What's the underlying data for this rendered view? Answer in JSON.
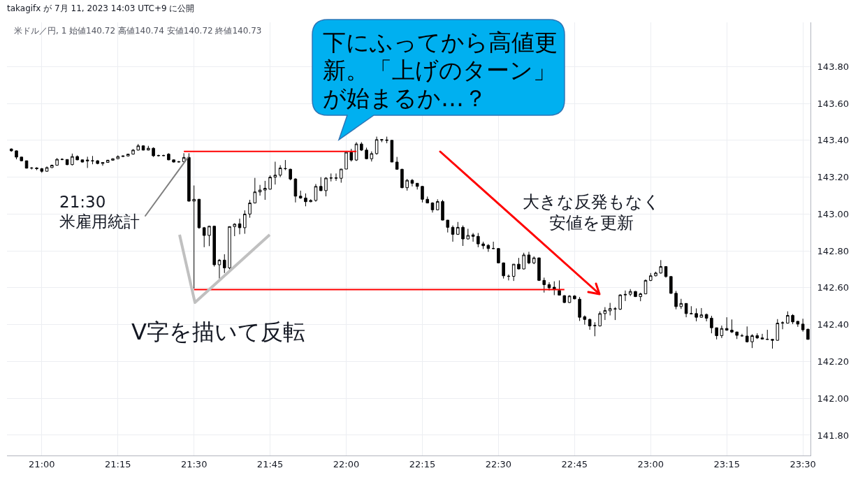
{
  "chart_data": {
    "type": "candlestick",
    "annotations": [
      "takagifx が 7月 11, 2023 14:03 UTC+9 に公開",
      "米ドル／円, 1 始値140.72 高値140.74 安値140.72 終値140.73",
      "下にふってから高値更新。「上げのターン」が始まるか…？",
      {
        "text": "21:30\n米雇用統計",
        "y": 143.307
      },
      "V字を描いて反転",
      "大きな反発もなく安値を更新"
    ],
    "categories": [
      null,
      null,
      null,
      null,
      null,
      null,
      "21:00",
      null,
      null,
      null,
      null,
      null,
      null,
      null,
      null,
      null,
      null,
      null,
      null,
      null,
      null,
      "21:15",
      null,
      null,
      null,
      null,
      null,
      null,
      null,
      null,
      null,
      null,
      null,
      null,
      null,
      null,
      "21:30",
      null,
      null,
      null,
      null,
      null,
      null,
      null,
      null,
      null,
      null,
      null,
      null,
      null,
      null,
      "21:45",
      null,
      null,
      null,
      null,
      null,
      null,
      null,
      null,
      null,
      null,
      null,
      null,
      null,
      null,
      "22:00",
      null,
      null,
      null,
      null,
      null,
      null,
      null,
      null,
      null,
      null,
      null,
      null,
      null,
      null,
      "22:15",
      null,
      null,
      null,
      null,
      null,
      null,
      null,
      null,
      null,
      null,
      null,
      null,
      null,
      null,
      "22:30",
      null,
      null,
      null,
      null,
      null,
      null,
      null,
      null,
      null,
      null,
      null,
      null,
      null,
      null,
      "22:45",
      null,
      null,
      null,
      null,
      null,
      null,
      null,
      null,
      null,
      null,
      null,
      null,
      null,
      null,
      "23:00",
      null,
      null,
      null,
      null,
      null,
      null,
      null,
      null,
      null,
      null,
      null,
      null,
      null,
      null,
      "23:15",
      null,
      null,
      null,
      null,
      null,
      null,
      null,
      null,
      null,
      null,
      null,
      null,
      null,
      null,
      "23:30",
      null
    ],
    "ohlc": [
      [
        143.353,
        143.356,
        143.338,
        143.343
      ],
      [
        143.343,
        143.345,
        143.297,
        143.309
      ],
      [
        143.309,
        143.31,
        143.287,
        143.289
      ],
      [
        143.289,
        143.29,
        143.247,
        143.249
      ],
      [
        143.249,
        143.255,
        143.242,
        143.25
      ],
      [
        143.25,
        143.254,
        143.238,
        143.246
      ],
      [
        143.246,
        143.25,
        143.224,
        143.232
      ],
      [
        143.232,
        143.258,
        143.23,
        143.252
      ],
      [
        143.252,
        143.268,
        143.25,
        143.265
      ],
      [
        143.265,
        143.303,
        143.263,
        143.297
      ],
      [
        143.297,
        143.302,
        143.292,
        143.296
      ],
      [
        143.296,
        143.297,
        143.265,
        143.268
      ],
      [
        143.268,
        143.328,
        143.264,
        143.312
      ],
      [
        143.312,
        143.318,
        143.292,
        143.294
      ],
      [
        143.294,
        143.296,
        143.28,
        143.282
      ],
      [
        143.288,
        143.311,
        143.25,
        143.293
      ],
      [
        143.288,
        143.315,
        143.27,
        143.289
      ],
      [
        143.289,
        143.292,
        143.27,
        143.274
      ],
      [
        143.274,
        143.281,
        143.262,
        143.28
      ],
      [
        143.28,
        143.294,
        143.278,
        143.292
      ],
      [
        143.292,
        143.302,
        143.29,
        143.3
      ],
      [
        143.3,
        143.318,
        143.298,
        143.312
      ],
      [
        143.312,
        143.318,
        143.31,
        143.315
      ],
      [
        143.315,
        143.327,
        143.313,
        143.325
      ],
      [
        143.325,
        143.352,
        143.323,
        143.347
      ],
      [
        143.347,
        143.38,
        143.345,
        143.37
      ],
      [
        143.37,
        143.373,
        143.345,
        143.347
      ],
      [
        143.347,
        143.37,
        143.345,
        143.357
      ],
      [
        143.357,
        143.362,
        143.31,
        143.316
      ],
      [
        143.316,
        143.322,
        143.312,
        143.318
      ],
      [
        143.318,
        143.322,
        143.314,
        143.317
      ],
      [
        143.325,
        143.33,
        143.292,
        143.294
      ],
      [
        143.294,
        143.296,
        143.28,
        143.282
      ],
      [
        143.282,
        143.288,
        143.28,
        143.284
      ],
      [
        143.284,
        143.33,
        143.282,
        143.307
      ],
      [
        143.307,
        143.33,
        143.068,
        143.07
      ],
      [
        143.07,
        143.155,
        142.596,
        143.08
      ],
      [
        143.08,
        143.082,
        142.92,
        142.926
      ],
      [
        142.926,
        142.93,
        142.82,
        142.884
      ],
      [
        142.884,
        142.936,
        142.826,
        142.934
      ],
      [
        142.934,
        142.936,
        142.715,
        142.725
      ],
      [
        142.725,
        142.756,
        142.65,
        142.75
      ],
      [
        142.75,
        142.782,
        142.68,
        142.708
      ],
      [
        142.708,
        142.933,
        142.7,
        142.932
      ],
      [
        142.932,
        142.95,
        142.88,
        142.945
      ],
      [
        142.947,
        142.975,
        142.89,
        142.926
      ],
      [
        142.926,
        143.02,
        142.893,
        143.0
      ],
      [
        143.0,
        143.077,
        142.98,
        143.06
      ],
      [
        143.06,
        143.196,
        143.058,
        143.12
      ],
      [
        143.12,
        143.158,
        143.1,
        143.13
      ],
      [
        143.13,
        143.18,
        143.077,
        143.14
      ],
      [
        143.135,
        143.21,
        143.133,
        143.2
      ],
      [
        143.2,
        143.284,
        143.16,
        143.211
      ],
      [
        143.211,
        143.265,
        143.2,
        143.25
      ],
      [
        143.247,
        143.293,
        143.238,
        143.246
      ],
      [
        143.243,
        143.246,
        143.183,
        143.19
      ],
      [
        143.19,
        143.195,
        143.063,
        143.097
      ],
      [
        143.097,
        143.127,
        143.083,
        143.087
      ],
      [
        143.087,
        143.112,
        143.042,
        143.067
      ],
      [
        143.067,
        143.08,
        143.064,
        143.074
      ],
      [
        143.074,
        143.163,
        143.067,
        143.15
      ],
      [
        143.15,
        143.2,
        143.125,
        143.127
      ],
      [
        143.127,
        143.2,
        143.096,
        143.195
      ],
      [
        143.195,
        143.22,
        143.177,
        143.196
      ],
      [
        143.196,
        143.22,
        143.18,
        143.195
      ],
      [
        143.194,
        143.244,
        143.17,
        143.244
      ],
      [
        143.244,
        143.335,
        143.244,
        143.335
      ],
      [
        143.335,
        143.354,
        143.285,
        143.293
      ],
      [
        143.293,
        143.39,
        143.288,
        143.38
      ],
      [
        143.38,
        143.39,
        143.342,
        143.347
      ],
      [
        143.347,
        143.36,
        143.297,
        143.3
      ],
      [
        143.3,
        143.34,
        143.285,
        143.328
      ],
      [
        143.328,
        143.42,
        143.322,
        143.404
      ],
      [
        143.404,
        143.406,
        143.39,
        143.402
      ],
      [
        143.402,
        143.42,
        143.384,
        143.4
      ],
      [
        143.4,
        143.4,
        143.282,
        143.282
      ],
      [
        143.282,
        143.31,
        143.24,
        143.243
      ],
      [
        143.243,
        143.245,
        143.14,
        143.143
      ],
      [
        143.143,
        143.19,
        143.127,
        143.183
      ],
      [
        143.183,
        143.19,
        143.15,
        143.167
      ],
      [
        143.167,
        143.168,
        143.133,
        143.15
      ],
      [
        143.15,
        143.152,
        143.063,
        143.08
      ],
      [
        143.08,
        143.095,
        143.058,
        143.06
      ],
      [
        143.06,
        143.064,
        143.008,
        143.023
      ],
      [
        143.023,
        143.08,
        143.02,
        143.068
      ],
      [
        143.068,
        143.077,
        142.966,
        142.967
      ],
      [
        142.967,
        142.968,
        142.9,
        142.928
      ],
      [
        142.928,
        142.938,
        142.85,
        142.89
      ],
      [
        142.89,
        142.957,
        142.887,
        142.928
      ],
      [
        142.928,
        142.938,
        142.827,
        142.865
      ],
      [
        142.865,
        142.92,
        142.862,
        142.884
      ],
      [
        142.887,
        142.897,
        142.85,
        142.879
      ],
      [
        142.879,
        142.897,
        142.82,
        142.838
      ],
      [
        142.838,
        142.85,
        142.81,
        142.828
      ],
      [
        142.83,
        142.837,
        142.795,
        142.813
      ],
      [
        142.813,
        142.85,
        142.81,
        142.813
      ],
      [
        142.813,
        142.815,
        142.733,
        142.735
      ],
      [
        142.735,
        142.737,
        142.65,
        142.665
      ],
      [
        142.663,
        142.672,
        142.64,
        142.662
      ],
      [
        142.662,
        142.728,
        142.637,
        142.728
      ],
      [
        142.728,
        142.762,
        142.7,
        142.702
      ],
      [
        142.702,
        142.79,
        142.7,
        142.778
      ],
      [
        142.778,
        142.795,
        142.728,
        142.735
      ],
      [
        142.735,
        142.77,
        142.728,
        142.762
      ],
      [
        142.762,
        142.764,
        142.637,
        142.64
      ],
      [
        142.64,
        142.655,
        142.574,
        142.617
      ],
      [
        142.617,
        142.63,
        142.585,
        142.6
      ],
      [
        142.603,
        142.635,
        142.56,
        142.59
      ],
      [
        142.585,
        142.64,
        142.558,
        142.56
      ],
      [
        142.557,
        142.56,
        142.517,
        142.52
      ],
      [
        142.52,
        142.56,
        142.517,
        142.555
      ],
      [
        142.555,
        142.56,
        142.537,
        142.54
      ],
      [
        142.538,
        142.55,
        142.42,
        142.44
      ],
      [
        142.443,
        142.45,
        142.4,
        142.428
      ],
      [
        142.428,
        142.433,
        142.372,
        142.393
      ],
      [
        142.394,
        142.413,
        142.337,
        142.395
      ],
      [
        142.393,
        142.472,
        142.39,
        142.46
      ],
      [
        142.46,
        142.495,
        142.425,
        142.477
      ],
      [
        142.475,
        142.518,
        142.45,
        142.487
      ],
      [
        142.486,
        142.495,
        142.425,
        142.485
      ],
      [
        142.484,
        142.565,
        142.48,
        142.561
      ],
      [
        142.561,
        142.585,
        142.528,
        142.564
      ],
      [
        142.565,
        142.593,
        142.555,
        142.58
      ],
      [
        142.58,
        142.582,
        142.55,
        142.552
      ],
      [
        142.552,
        142.573,
        142.527,
        142.567
      ],
      [
        142.567,
        142.645,
        142.565,
        142.64
      ],
      [
        142.64,
        142.68,
        142.636,
        142.665
      ],
      [
        142.665,
        142.687,
        142.662,
        142.68
      ],
      [
        142.68,
        142.75,
        142.677,
        142.715
      ],
      [
        142.715,
        142.717,
        142.655,
        142.661
      ],
      [
        142.661,
        142.661,
        142.567,
        142.57
      ],
      [
        142.57,
        142.583,
        142.483,
        142.498
      ],
      [
        142.498,
        142.54,
        142.485,
        142.515
      ],
      [
        142.515,
        142.516,
        142.44,
        142.46
      ],
      [
        142.46,
        142.5,
        142.457,
        142.459
      ],
      [
        142.46,
        142.488,
        142.418,
        142.44
      ],
      [
        142.44,
        142.49,
        142.438,
        142.453
      ],
      [
        142.455,
        142.46,
        142.418,
        142.435
      ],
      [
        142.435,
        142.448,
        142.353,
        142.383
      ],
      [
        142.383,
        142.384,
        142.32,
        142.34
      ],
      [
        142.34,
        142.395,
        142.327,
        142.379
      ],
      [
        142.379,
        142.44,
        142.367,
        142.37
      ],
      [
        142.37,
        142.428,
        142.355,
        142.36
      ],
      [
        142.36,
        142.362,
        142.322,
        142.342
      ],
      [
        142.34,
        142.35,
        142.335,
        142.339
      ],
      [
        142.338,
        142.39,
        142.303,
        142.307
      ],
      [
        142.307,
        142.348,
        142.273,
        142.34
      ],
      [
        142.34,
        142.353,
        142.322,
        142.328
      ],
      [
        142.328,
        142.35,
        142.32,
        142.322
      ],
      [
        142.321,
        142.372,
        142.318,
        142.32
      ],
      [
        142.32,
        142.322,
        142.27,
        142.315
      ],
      [
        142.315,
        142.43,
        142.313,
        142.408
      ],
      [
        142.408,
        142.418,
        142.375,
        142.41
      ],
      [
        142.408,
        142.472,
        142.406,
        142.45
      ],
      [
        142.45,
        142.457,
        142.403,
        142.415
      ],
      [
        142.418,
        142.42,
        142.388,
        142.403
      ],
      [
        142.403,
        142.432,
        142.362,
        142.372
      ],
      [
        142.375,
        142.378,
        142.32,
        142.32
      ]
    ],
    "series": [
      {
        "type": "line",
        "color": "#ff0000",
        "values": [
          null,
          null,
          null,
          null,
          null,
          null,
          null,
          null,
          null,
          null,
          null,
          null,
          null,
          null,
          null,
          null,
          null,
          null,
          null,
          null,
          null,
          null,
          null,
          null,
          null,
          null,
          null,
          null,
          null,
          null,
          null,
          null,
          null,
          null,
          143.34,
          143.34,
          143.34,
          143.34,
          143.34,
          143.34,
          143.34,
          143.34,
          143.34,
          143.34,
          143.34,
          143.34,
          143.34,
          143.34,
          143.34,
          143.34,
          143.34,
          143.34,
          143.34,
          143.34,
          143.34,
          143.34,
          143.34,
          143.34,
          143.34,
          143.34,
          143.34,
          143.34,
          143.34,
          143.34,
          143.34,
          143.34,
          143.34,
          143.34,
          143.34,
          null,
          null,
          null,
          null,
          null,
          null,
          null,
          null,
          null,
          null,
          null,
          null,
          null,
          null,
          null,
          null,
          null,
          null,
          null,
          null,
          null,
          null,
          null,
          null,
          null,
          null,
          null,
          null,
          null,
          null,
          null,
          null,
          null,
          null,
          null,
          null,
          null,
          null,
          null,
          null,
          null,
          null,
          null,
          null,
          null,
          null,
          null,
          null,
          null,
          null,
          null,
          null,
          null,
          null,
          null,
          null,
          null,
          null,
          null,
          null,
          null,
          null,
          null,
          null,
          null,
          null,
          null,
          null,
          null,
          null,
          null,
          null,
          null,
          null,
          null,
          null,
          null,
          null,
          null,
          null,
          null,
          null,
          null,
          null,
          null,
          null,
          null,
          null,
          null
        ]
      },
      {
        "type": "line",
        "color": "#ff0000",
        "values": [
          null,
          null,
          null,
          null,
          null,
          null,
          null,
          null,
          null,
          null,
          null,
          null,
          null,
          null,
          null,
          null,
          null,
          null,
          null,
          null,
          null,
          null,
          null,
          null,
          null,
          null,
          null,
          null,
          null,
          null,
          null,
          null,
          null,
          null,
          null,
          null,
          142.59,
          142.59,
          142.59,
          142.59,
          142.59,
          142.59,
          142.59,
          142.59,
          142.59,
          142.59,
          142.59,
          142.59,
          142.59,
          142.59,
          142.59,
          142.59,
          142.59,
          142.59,
          142.59,
          142.59,
          142.59,
          142.59,
          142.59,
          142.59,
          142.59,
          142.59,
          142.59,
          142.59,
          142.59,
          142.59,
          142.59,
          142.59,
          142.59,
          142.59,
          142.59,
          142.59,
          142.59,
          142.59,
          142.59,
          142.59,
          142.59,
          142.59,
          142.59,
          142.59,
          142.59,
          142.59,
          142.59,
          142.59,
          142.59,
          142.59,
          142.59,
          142.59,
          142.59,
          142.59,
          142.59,
          142.59,
          142.59,
          142.59,
          142.59,
          142.59,
          142.59,
          142.59,
          142.59,
          142.59,
          142.59,
          142.59,
          142.59,
          142.59,
          142.59,
          142.59,
          142.59,
          142.59,
          142.59,
          142.59,
          null,
          null,
          null,
          null,
          null,
          null,
          null,
          null,
          null,
          null,
          null,
          null,
          null,
          null,
          null,
          null,
          null,
          null,
          null,
          null,
          null,
          null,
          null,
          null,
          null,
          null,
          null,
          null,
          null,
          null,
          null,
          null,
          null,
          null,
          null,
          null,
          null,
          null,
          null,
          null,
          null,
          null,
          null,
          null,
          null,
          null,
          null,
          null
        ]
      }
    ],
    "ylim": [
      141.69,
      144.04
    ],
    "yticks": [
      {
        "value": 141.8,
        "label": "141.80"
      },
      {
        "value": 142.0,
        "label": "142.00"
      },
      {
        "value": 142.2,
        "label": "142.20"
      },
      {
        "value": 142.4,
        "label": "142.40"
      },
      {
        "value": 142.6,
        "label": "142.60"
      },
      {
        "value": 142.8,
        "label": "142.80"
      },
      {
        "value": 143.0,
        "label": "143.00"
      },
      {
        "value": 143.2,
        "label": "143.20"
      },
      {
        "value": 143.4,
        "label": "143.40"
      },
      {
        "value": 143.6,
        "label": "143.60"
      },
      {
        "value": 143.8,
        "label": "143.80"
      }
    ],
    "grid": true
  }
}
